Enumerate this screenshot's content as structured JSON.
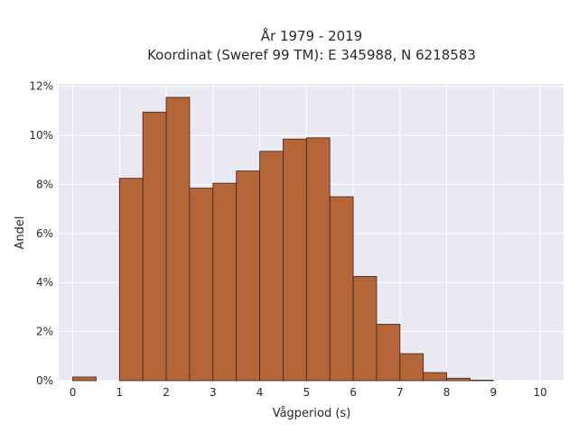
{
  "chart_data": {
    "type": "bar",
    "title_line1": "År 1979 - 2019",
    "title_line2": "Koordinat (Sweref 99 TM): E 345988, N 6218583",
    "xlabel": "Vågperiod (s)",
    "ylabel": "Andel",
    "xlim": [
      -0.3,
      10.5
    ],
    "ylim": [
      0,
      12.1
    ],
    "x_ticks": [
      0,
      1,
      2,
      3,
      4,
      5,
      6,
      7,
      8,
      9,
      10
    ],
    "x_tick_labels": [
      "0",
      "1",
      "2",
      "3",
      "4",
      "5",
      "6",
      "7",
      "8",
      "9",
      "10"
    ],
    "y_ticks": [
      0,
      2,
      4,
      6,
      8,
      10,
      12
    ],
    "y_tick_labels": [
      "0%",
      "2%",
      "4%",
      "6%",
      "8%",
      "10%",
      "12%"
    ],
    "bin_width": 0.5,
    "bins": [
      {
        "x0": 0.0,
        "value": 0.15
      },
      {
        "x0": 0.5,
        "value": 0.0
      },
      {
        "x0": 1.0,
        "value": 8.25
      },
      {
        "x0": 1.5,
        "value": 10.95
      },
      {
        "x0": 2.0,
        "value": 11.55
      },
      {
        "x0": 2.5,
        "value": 7.85
      },
      {
        "x0": 3.0,
        "value": 8.05
      },
      {
        "x0": 3.5,
        "value": 8.55
      },
      {
        "x0": 4.0,
        "value": 9.35
      },
      {
        "x0": 4.5,
        "value": 9.85
      },
      {
        "x0": 5.0,
        "value": 9.9
      },
      {
        "x0": 5.5,
        "value": 7.5
      },
      {
        "x0": 6.0,
        "value": 4.25
      },
      {
        "x0": 6.5,
        "value": 2.3
      },
      {
        "x0": 7.0,
        "value": 1.1
      },
      {
        "x0": 7.5,
        "value": 0.33
      },
      {
        "x0": 8.0,
        "value": 0.1
      },
      {
        "x0": 8.5,
        "value": 0.02
      }
    ],
    "grid": true,
    "colors": {
      "bar_fill": "#b5653a",
      "bar_stroke": "#3d2418",
      "plot_background": "#e9e9f1",
      "grid": "#ffffff"
    }
  }
}
